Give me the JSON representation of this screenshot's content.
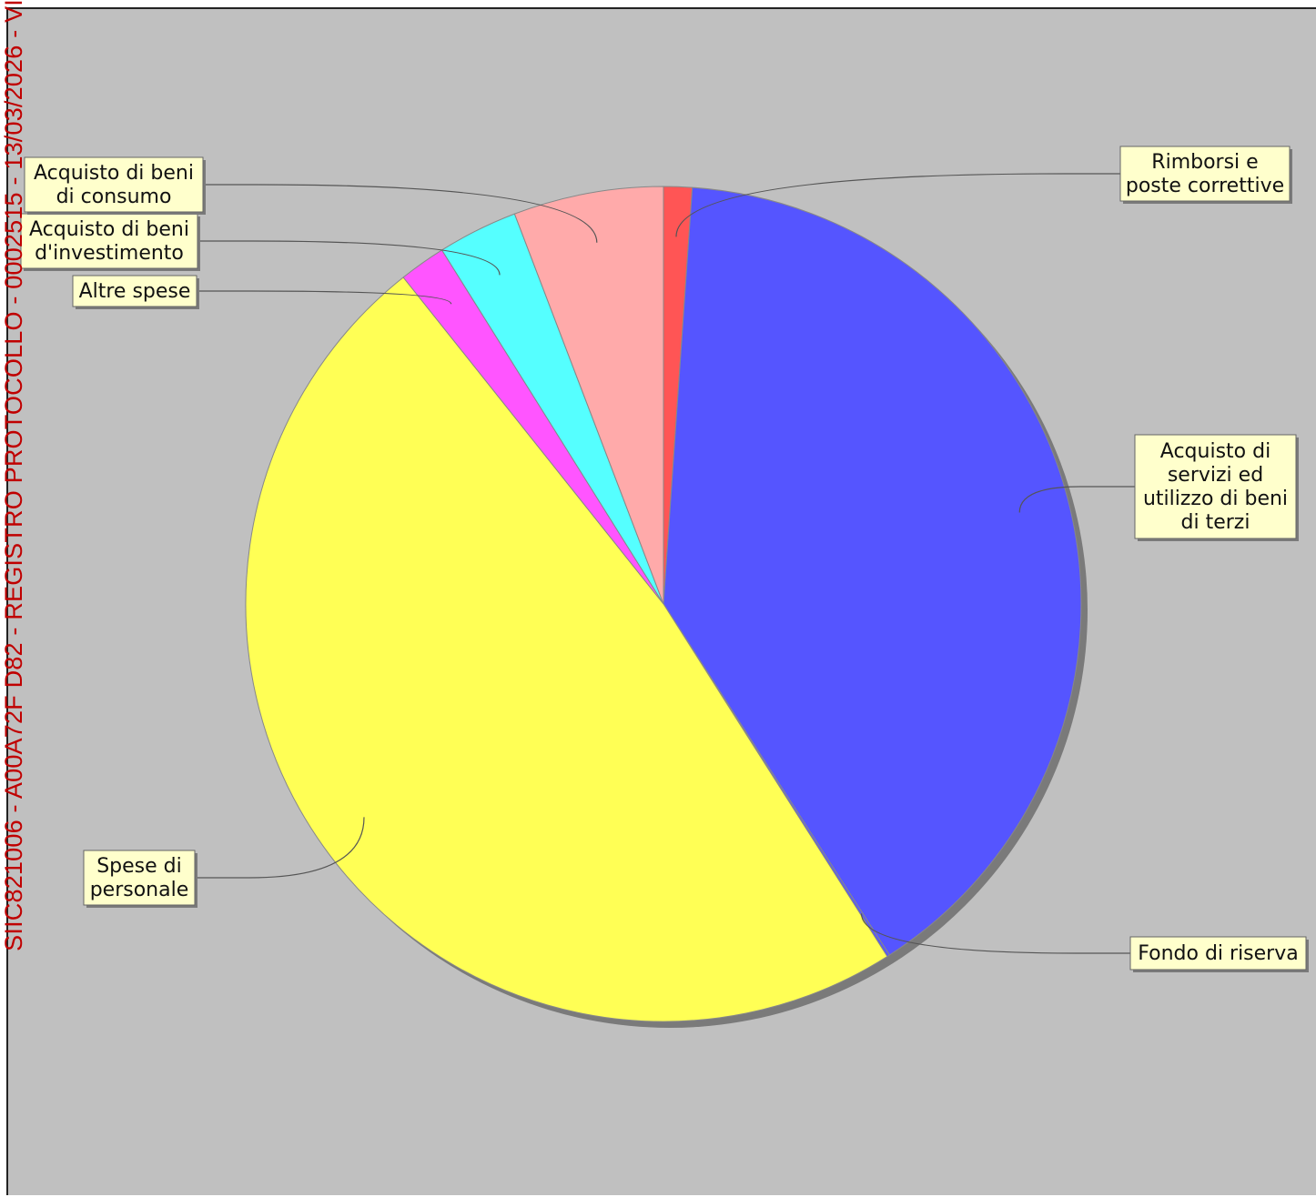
{
  "stamp": {
    "text": "SIIC821006 - A00A72F D82 - REGISTRO PROTOCOLLO - 0002515 - 13/03/2026 - VI"
  },
  "chart_data": {
    "type": "pie",
    "title": "",
    "start_angle_deg": 0,
    "direction": "clockwise",
    "shadow": true,
    "slices": [
      {
        "label": "Rimborsi e\nposte correttive",
        "value": 1.1,
        "color": "#ff5555"
      },
      {
        "label": "Acquisto di\nservizi ed\nutilizzo di beni\ndi terzi",
        "value": 39.8,
        "color": "#5555ff"
      },
      {
        "label": "Fondo di riserva",
        "value": 0.1,
        "color": "#5555ff"
      },
      {
        "label": "Spese di\npersonale",
        "value": 48.3,
        "color": "#ffff55"
      },
      {
        "label": "Altre spese",
        "value": 1.8,
        "color": "#ff55ff"
      },
      {
        "label": "Acquisto di beni\nd'investimento",
        "value": 3.1,
        "color": "#55ffff"
      },
      {
        "label": "Acquisto di beni\ndi consumo",
        "value": 5.8,
        "color": "#ffaaaa"
      }
    ]
  }
}
